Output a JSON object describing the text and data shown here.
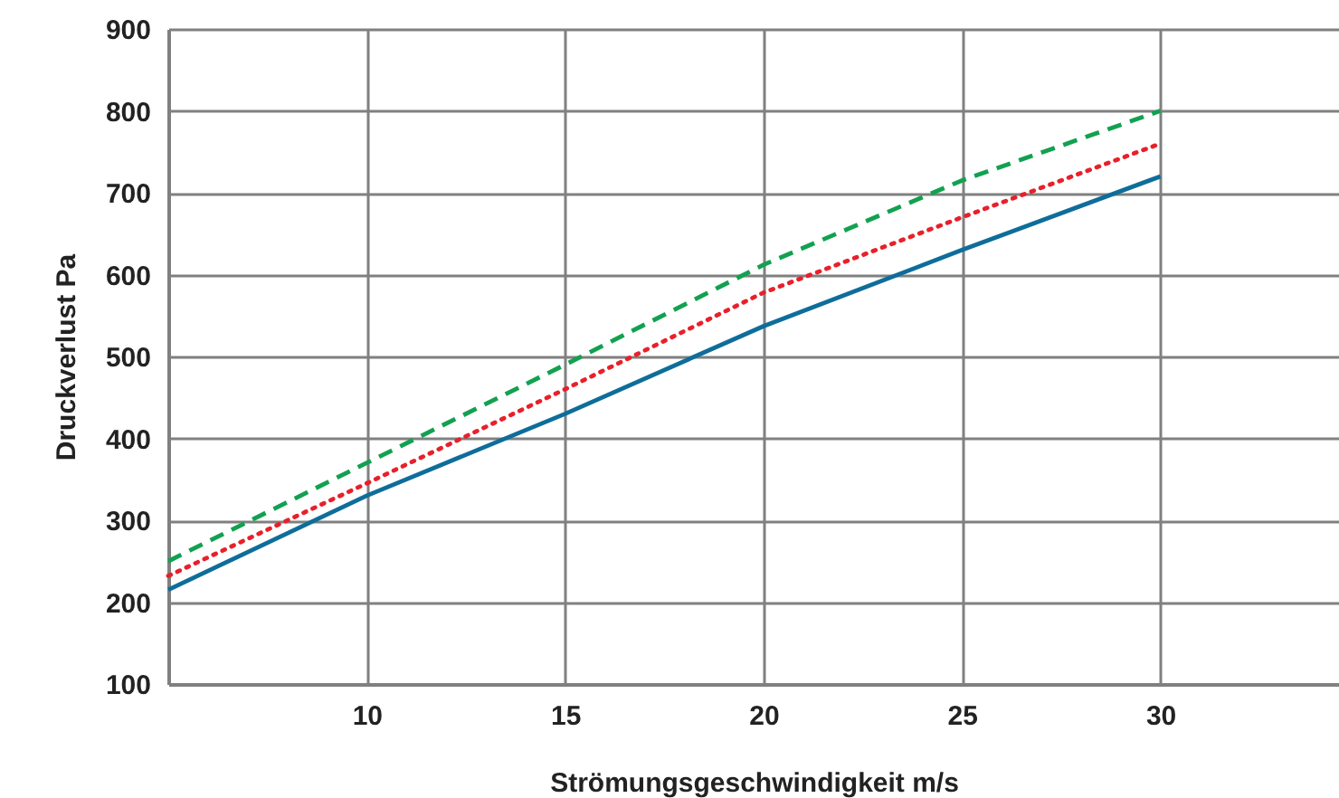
{
  "chart_data": {
    "type": "line",
    "xlabel": "Strömungsgeschwindigkeit m/s",
    "ylabel": "Druckverlust Pa",
    "x": [
      5,
      10,
      15,
      20,
      25,
      30
    ],
    "xlim": [
      5,
      34.5
    ],
    "xticks": [
      10,
      15,
      20,
      25,
      30
    ],
    "ylim": [
      100,
      900
    ],
    "yticks": [
      100,
      200,
      300,
      400,
      500,
      600,
      700,
      800,
      900
    ],
    "grid": true,
    "marker": "none",
    "series": [
      {
        "color": "#0e6d9a",
        "line_style": "solid",
        "values": [
          215,
          330,
          430,
          537,
          630,
          720
        ]
      },
      {
        "color": "#e8202a",
        "line_style": "dotted",
        "values": [
          232,
          345,
          460,
          578,
          670,
          760
        ]
      },
      {
        "color": "#12a150",
        "line_style": "dashed",
        "values": [
          250,
          370,
          490,
          612,
          715,
          800
        ]
      }
    ]
  }
}
